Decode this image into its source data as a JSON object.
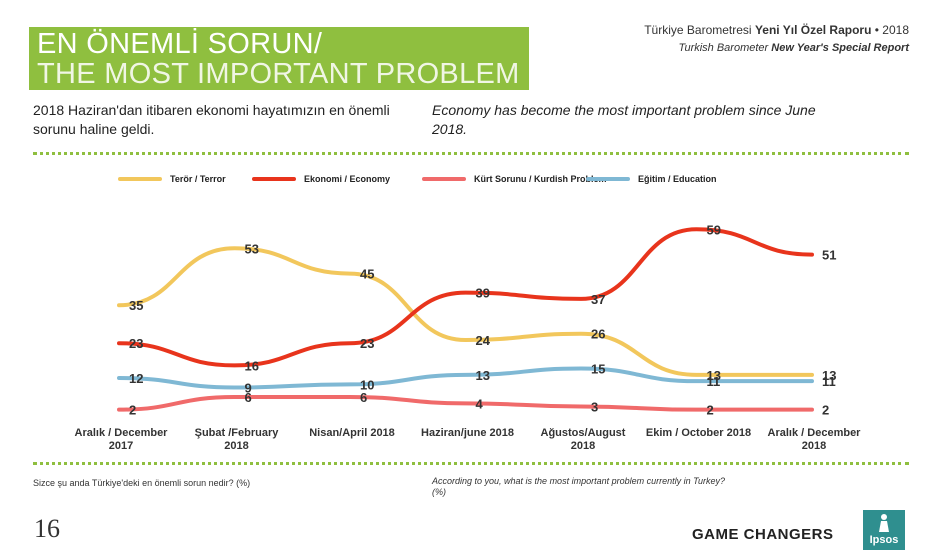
{
  "header": {
    "title_tr": "EN ÖNEMLİ SORUN/",
    "title_en": "THE MOST IMPORTANT PROBLEM",
    "report_tr_prefix": "Türkiye Barometresi",
    "report_tr_bold": "Yeni Yıl Özel Raporu",
    "report_tr_suffix": "• 2018",
    "report_en_prefix": "Turkish Barometer",
    "report_en_bold": "New Year's Special Report"
  },
  "summary": {
    "tr": "2018 Haziran'dan itibaren ekonomi hayatımızın en önemli sorunu haline geldi.",
    "en": "Economy has become the most important problem since June 2018."
  },
  "footer": {
    "question_tr": "Sizce şu anda Türkiye'deki en önemli sorun nedir? (%)",
    "question_en": "According to you, what is the most important problem currently in Turkey? (%)",
    "page_number": "16",
    "tagline": "GAME CHANGERS",
    "logo_text": "Ipsos"
  },
  "colors": {
    "accent_green": "#8fbf3f",
    "terror": "#f2c75c",
    "economy": "#e8341c",
    "kurdish": "#f06a6a",
    "education": "#7fb8d4"
  },
  "chart_data": {
    "type": "line",
    "title": "",
    "xlabel": "",
    "ylabel": "",
    "ylim": [
      0,
      65
    ],
    "grid": false,
    "legend_position": "top",
    "categories": [
      [
        "Aralık / December",
        "2017"
      ],
      [
        "Şubat /February",
        "2018"
      ],
      [
        "Nisan/April 2018"
      ],
      [
        "Haziran/june 2018"
      ],
      [
        "Ağustos/August",
        "2018"
      ],
      [
        "Ekim / October 2018"
      ],
      [
        "Aralık / December",
        "2018"
      ]
    ],
    "series": [
      {
        "name": "Terör / Terror",
        "key": "terror",
        "values": [
          35,
          53,
          45,
          24,
          26,
          13,
          13
        ]
      },
      {
        "name": "Ekonomi / Economy",
        "key": "economy",
        "values": [
          23,
          16,
          23,
          39,
          37,
          59,
          51
        ]
      },
      {
        "name": "Kürt Sorunu / Kurdish Problem",
        "key": "kurdish",
        "values": [
          2,
          6,
          6,
          4,
          3,
          2,
          2
        ]
      },
      {
        "name": "Eğitim / Education",
        "key": "education",
        "values": [
          12,
          9,
          10,
          13,
          15,
          11,
          11
        ]
      }
    ]
  }
}
